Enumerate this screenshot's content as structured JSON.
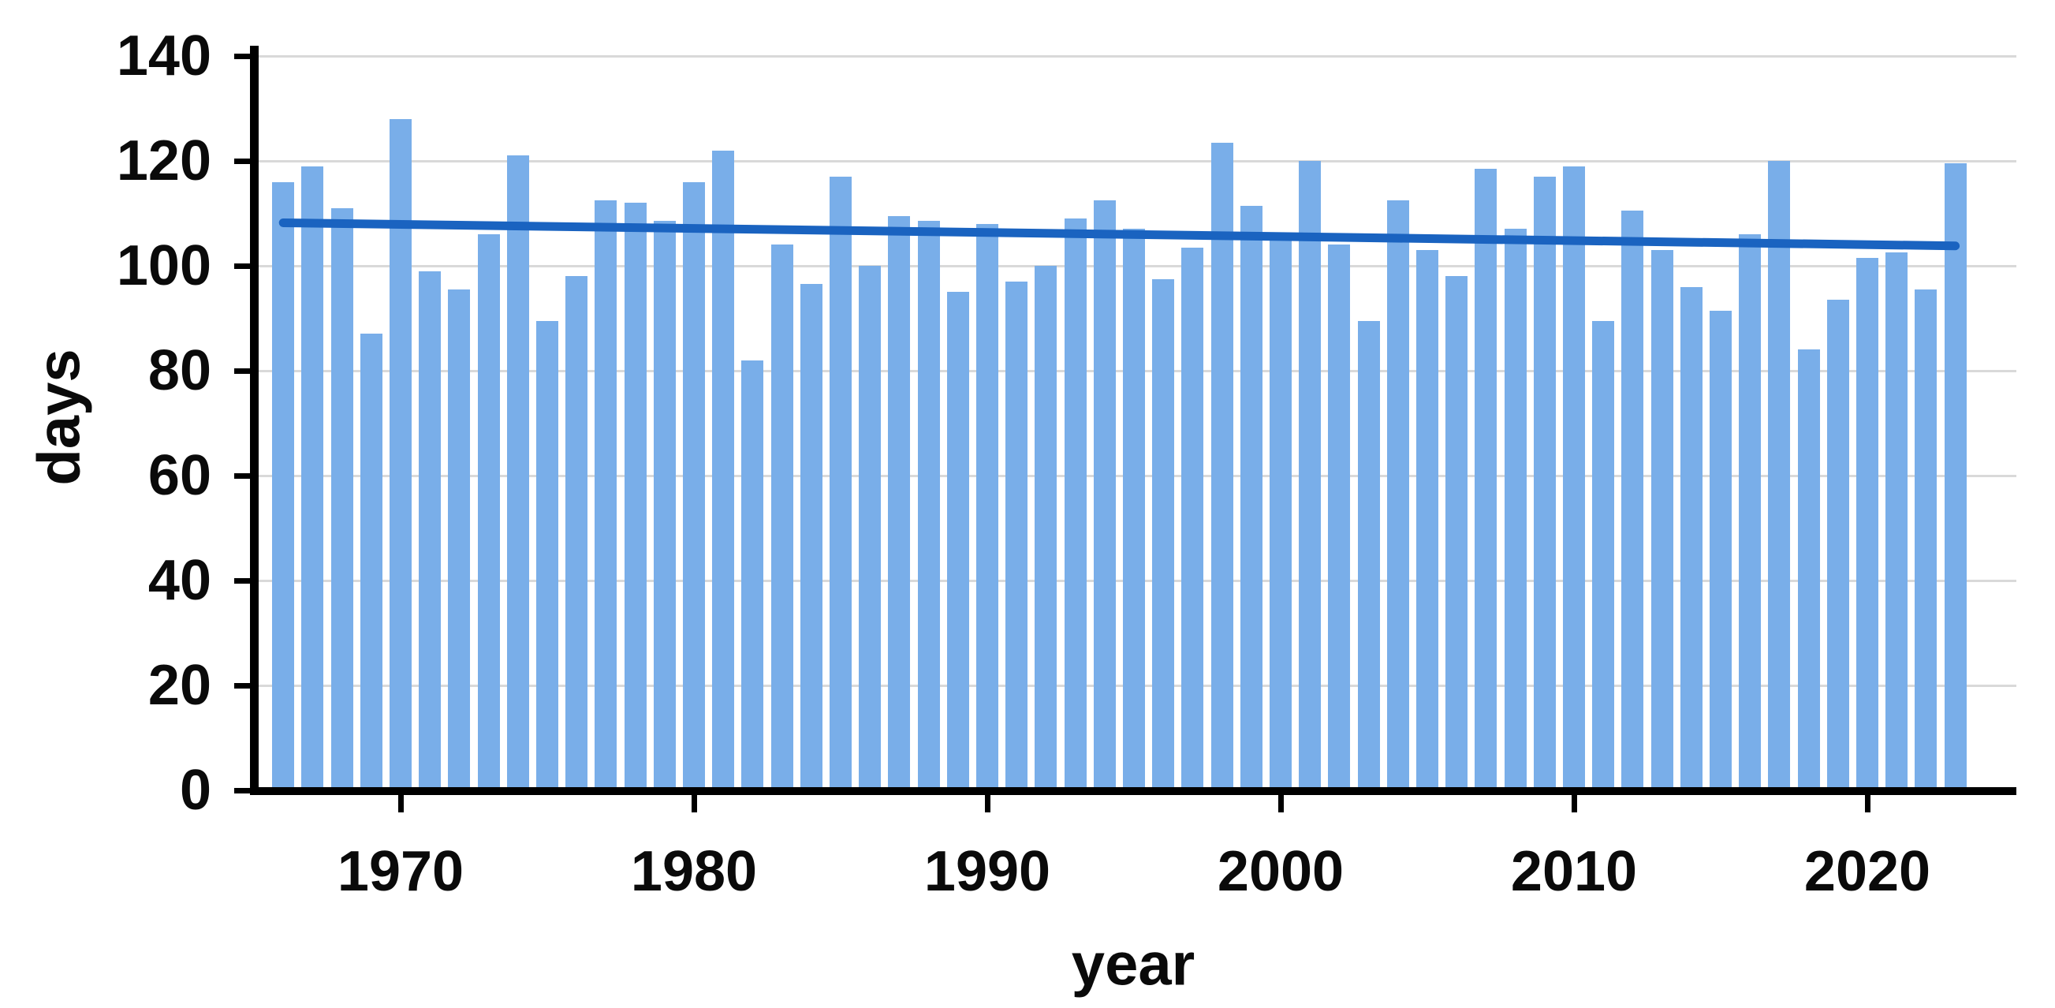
{
  "chart_data": {
    "type": "bar",
    "title": "",
    "xlabel": "year",
    "ylabel": "days",
    "ylim": [
      0,
      140
    ],
    "yticks": [
      0,
      20,
      40,
      60,
      80,
      100,
      120,
      140
    ],
    "xticks": [
      1970,
      1980,
      1990,
      2000,
      2010,
      2020
    ],
    "grid": "horizontal",
    "legend": "none",
    "categories": [
      1966,
      1967,
      1968,
      1969,
      1970,
      1971,
      1972,
      1973,
      1974,
      1975,
      1976,
      1977,
      1978,
      1979,
      1980,
      1981,
      1982,
      1983,
      1984,
      1985,
      1986,
      1987,
      1988,
      1989,
      1990,
      1991,
      1992,
      1993,
      1994,
      1995,
      1996,
      1997,
      1998,
      1999,
      2000,
      2001,
      2002,
      2003,
      2004,
      2005,
      2006,
      2007,
      2008,
      2009,
      2010,
      2011,
      2012,
      2013,
      2014,
      2015,
      2016,
      2017,
      2018,
      2019,
      2020,
      2021,
      2022,
      2023
    ],
    "values": [
      116,
      119,
      111,
      87,
      128,
      99,
      95.5,
      106,
      121,
      89.5,
      98,
      112.5,
      112,
      108.5,
      116,
      122,
      82,
      104,
      96.5,
      117,
      100,
      109.5,
      108.5,
      95,
      108,
      97,
      100,
      109,
      112.5,
      107,
      97.5,
      103.5,
      123.5,
      111.5,
      105,
      120,
      104,
      89.5,
      112.5,
      103,
      98,
      118.5,
      107,
      117,
      119,
      89.5,
      110.5,
      103,
      96,
      91.5,
      106,
      120,
      84,
      93.5,
      101.5,
      102.5,
      95.5,
      119.5
    ],
    "trendline": {
      "name": "linear-trend",
      "x": [
        1966,
        2023
      ],
      "values": [
        108.2,
        103.8
      ]
    },
    "colors": {
      "bar": "#79AEE9",
      "trend": "#1A63C0",
      "gridline": "#D9D9D9",
      "axis": "#000000",
      "background": "#FFFFFF"
    }
  }
}
